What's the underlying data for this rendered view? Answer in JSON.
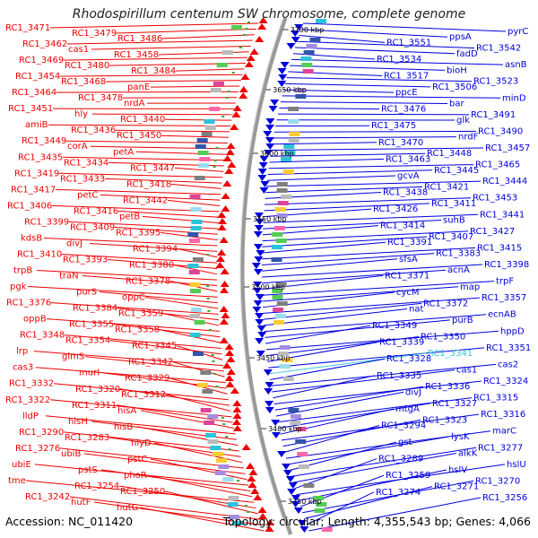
{
  "title": "Rhodospirillum centenum SW chromosome, complete genome",
  "footer": {
    "accession": "Accession: NC_011420",
    "summary": "Topology: circular; Length: 4,355,543 bp; Genes: 4,066"
  },
  "colors": {
    "forward": "#ee0000",
    "reverse": "#0000dd",
    "highlight": "#33c6d6",
    "backbone": "#999999"
  },
  "kbp_labels": [
    "3700 kbp",
    "3650 kbp",
    "3600 kbp",
    "3550 kbp",
    "3500 kbp",
    "3450 kbp",
    "3400 kbp",
    "3350 kbp"
  ],
  "left_labels": [
    "RC1_3471",
    "RC1_3479",
    "RC1_3486",
    "RC1_3462",
    "cas1",
    "RC1_3458",
    "RC1_3469",
    "RC1_3480",
    "RC1_3484",
    "RC1_3454",
    "RC1_3468",
    "panE",
    "RC1_3464",
    "RC1_3478",
    "nrdA",
    "RC1_3451",
    "hly",
    "RC1_3440",
    "amiB",
    "RC1_3436",
    "RC1_3450",
    "RC1_3449",
    "corA",
    "petA",
    "RC1_3435",
    "RC1_3434",
    "RC1_3447",
    "RC1_3419",
    "RC1_3433",
    "RC1_3418",
    "RC1_3417",
    "petC",
    "RC1_3442",
    "RC1_3406",
    "RC1_3416",
    "petB",
    "RC1_3399",
    "RC1_3409",
    "RC1_3395",
    "kdsB",
    "divJ",
    "RC1_3394",
    "RC1_3410",
    "RC1_3393",
    "RC1_3380",
    "trpB",
    "traN",
    "RC1_3378",
    "pgk",
    "purS",
    "oppC",
    "RC1_3376",
    "RC1_3384",
    "RC1_3359",
    "oppB",
    "RC1_3355",
    "RC1_3358",
    "RC1_3348",
    "RC1_3354",
    "RC1_3345",
    "lrp",
    "glmS",
    "RC1_3342",
    "cas3",
    "murI",
    "RC1_3329",
    "RC1_3332",
    "RC1_3320",
    "RC1_3312",
    "RC1_3322",
    "RC1_3311",
    "hisA",
    "lldP",
    "hisH",
    "hisB",
    "RC1_3290",
    "RC1_3283",
    "hlyD",
    "RC1_3276",
    "ubiB",
    "pstC",
    "ubiE",
    "pstS",
    "phoR",
    "tme",
    "RC1_3254",
    "RC1_3250",
    "RC1_3242",
    "hutF",
    "hutG"
  ],
  "right_labels": [
    "pyrC",
    "ppsA",
    "RC1_3551",
    "RC1_3542",
    "fadD",
    "RC1_3534",
    "asnB",
    "bioH",
    "RC1_3517",
    "RC1_3523",
    "RC1_3506",
    "ppcE",
    "minD",
    "bar",
    "RC1_3476",
    "RC1_3491",
    "glk",
    "RC1_3475",
    "RC1_3490",
    "nrdF",
    "RC1_3470",
    "RC1_3457",
    "RC1_3448",
    "RC1_3463",
    "RC1_3465",
    "RC1_3445",
    "gcvA",
    "RC1_3444",
    "RC1_3421",
    "RC1_3438",
    "RC1_3453",
    "RC1_3411",
    "RC1_3426",
    "RC1_3441",
    "suhB",
    "RC1_3414",
    "RC1_3427",
    "RC1_3407",
    "RC1_3391",
    "RC1_3415",
    "RC1_3383",
    "sfsA",
    "RC1_3398",
    "acnA",
    "RC1_3371",
    "trpF",
    "map",
    "cycM",
    "RC1_3357",
    "RC1_3372",
    "nat",
    "ecnAB",
    "purB",
    "RC1_3349",
    "hppD",
    "RC1_3350",
    "RC1_3339",
    "RC1_3351",
    "RC1_3341",
    "RC1_3328",
    "cas2",
    "cas1",
    "RC1_3335",
    "RC1_3324",
    "RC1_3336",
    "divJ",
    "RC1_3315",
    "RC1_3327",
    "mtgA",
    "RC1_3316",
    "RC1_3323",
    "RC1_3294",
    "marC",
    "lysK",
    "gst",
    "RC1_3277",
    "alkK",
    "RC1_3289",
    "hslU",
    "hslV",
    "RC1_3259",
    "RC1_3270",
    "RC1_3271",
    "RC1_3274",
    "RC1_3256"
  ]
}
